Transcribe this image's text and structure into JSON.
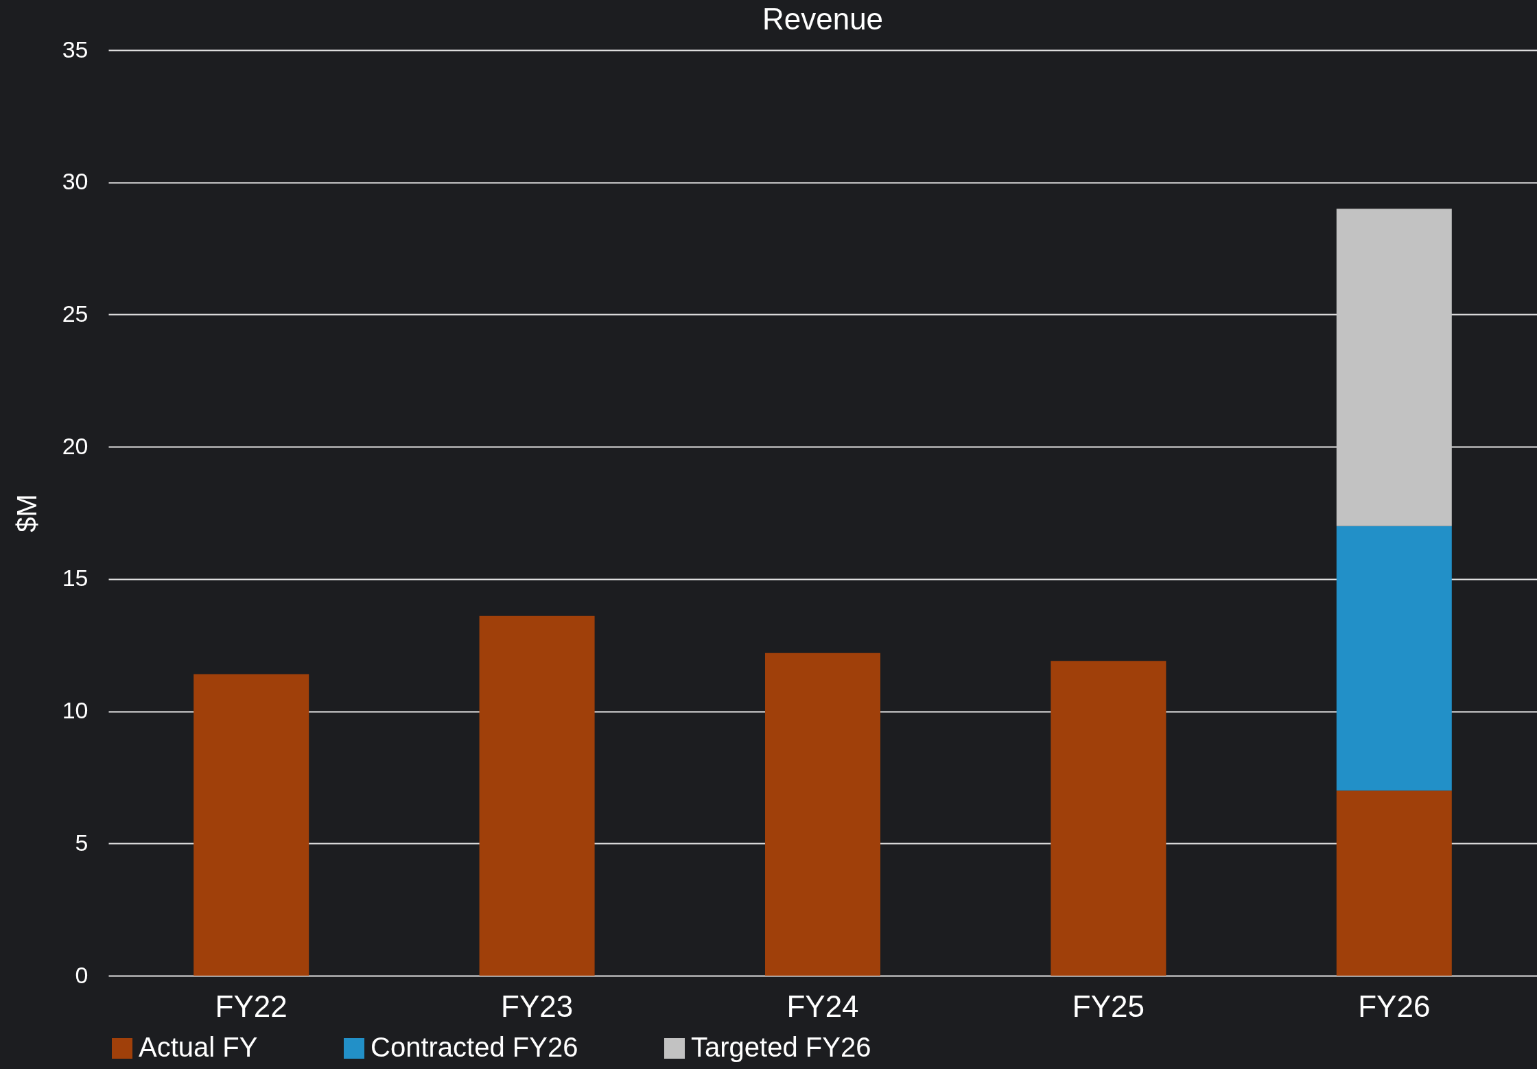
{
  "chart_data": {
    "type": "bar",
    "title": "Revenue",
    "ylabel": "$M",
    "stacked": true,
    "categories": [
      "FY22",
      "FY23",
      "FY24",
      "FY25",
      "FY26"
    ],
    "series": [
      {
        "name": "Actual FY",
        "color": "#a0400a",
        "values": [
          11.4,
          13.6,
          12.2,
          11.9,
          7.0
        ]
      },
      {
        "name": "Contracted FY26",
        "color": "#2290c8",
        "values": [
          null,
          null,
          null,
          null,
          10.0
        ]
      },
      {
        "name": "Targeted FY26",
        "color": "#c2c2c2",
        "values": [
          null,
          null,
          null,
          null,
          12.0
        ]
      }
    ],
    "ylim": [
      0,
      35
    ],
    "yticks": [
      0,
      5,
      10,
      15,
      20,
      25,
      30,
      35
    ],
    "grid": "y",
    "legend": "bottom"
  }
}
